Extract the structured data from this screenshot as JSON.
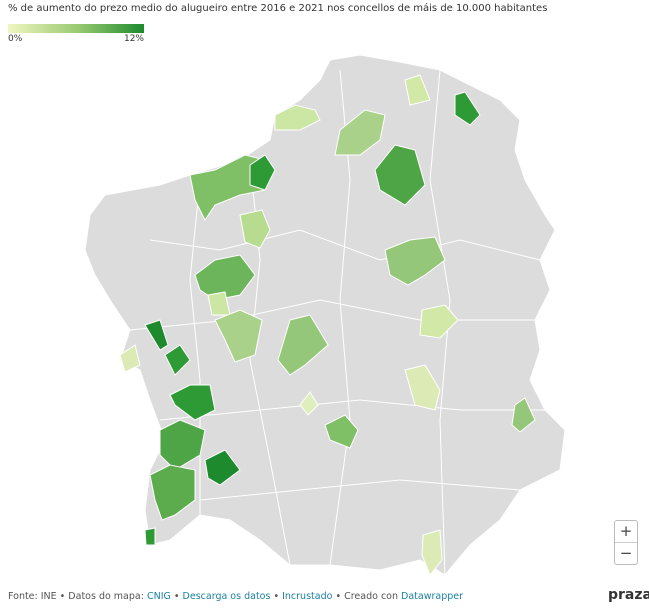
{
  "header": {
    "title": "% de aumento do prezo medio do alugueiro entre 2016 e 2021 nos concellos de máis de 10.000 habitantes"
  },
  "legend": {
    "min_label": "0%",
    "max_label": "12%"
  },
  "zoom": {
    "in": "+",
    "out": "−"
  },
  "footer": {
    "items": [
      "Fonte: INE • Datos do mapa:",
      "CNIG",
      "•",
      "Descarga os datos",
      "•",
      "Incrustado",
      "•",
      "Creado con",
      "Datawrapper"
    ]
  },
  "brand": "praza"
}
